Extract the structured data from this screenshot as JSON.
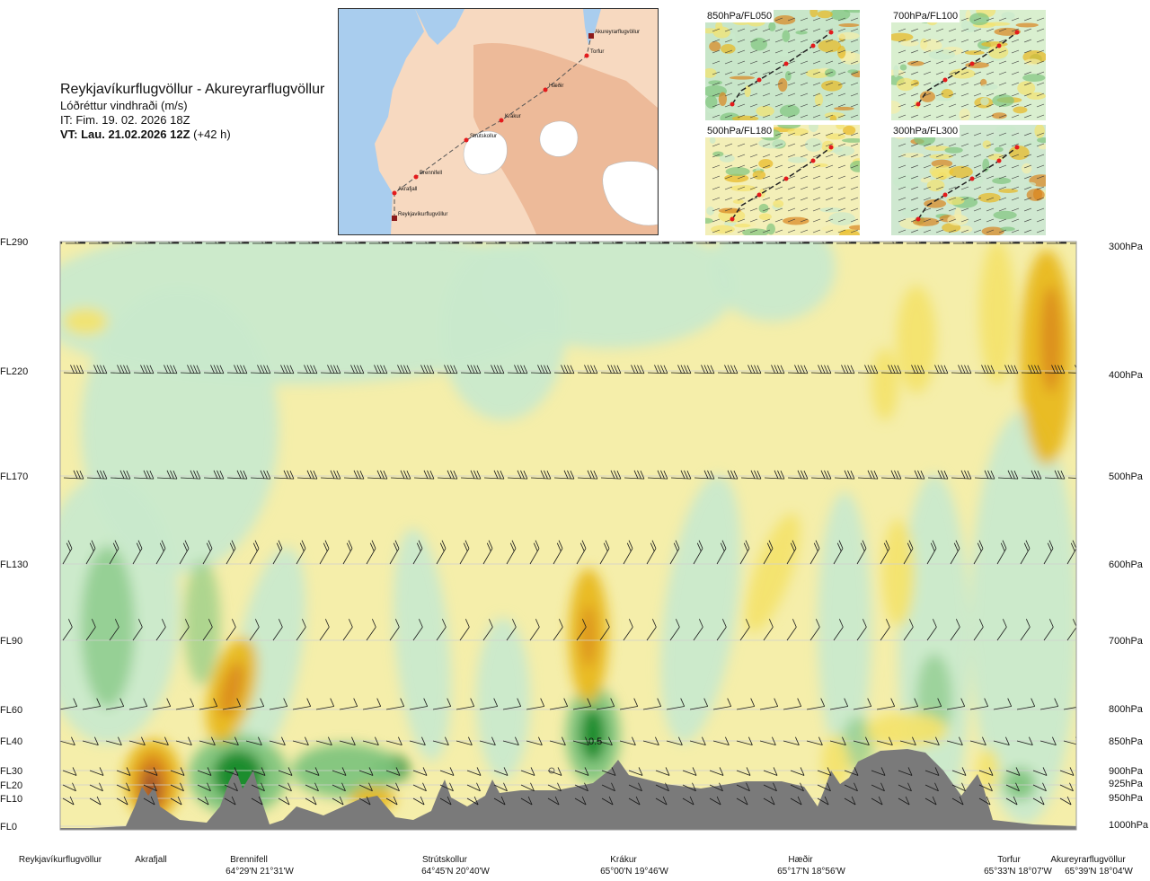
{
  "header": {
    "route_title": "Reykjavíkurflugvöllur - Akureyrarflugvöllur",
    "parameter": "Lóðréttur vindhraði (m/s)",
    "issue_time": "IT: Fim. 19. 02. 2026 18Z",
    "valid_label": "VT: Lau. 21.02.2026 12Z",
    "valid_offset": "(+42 h)"
  },
  "route_map": {
    "waypoints": [
      "Reykjavíkurflugvöllur",
      "Akrafjall",
      "Brennifell",
      "Strútskollur",
      "Krákur",
      "Hæðir",
      "Torfur",
      "Akureyrarflugvöllur"
    ],
    "colors": {
      "sea": "#a9cdee",
      "land": "#f7d9c0",
      "highland": "#eab28f",
      "ice": "#ffffff",
      "route": "#555555",
      "point": "#e31a1c"
    }
  },
  "mini_maps": [
    {
      "label": "850hPa/FL050"
    },
    {
      "label": "700hPa/FL100"
    },
    {
      "label": "500hPa/FL180"
    },
    {
      "label": "300hPa/FL300"
    }
  ],
  "chart_data": {
    "type": "heatmap",
    "xlabel": "",
    "ylabel": "",
    "legend": "none",
    "grid": true,
    "x_categories": [
      "Reykjavíkurflugvöllur",
      "Akrafjall",
      "Brennifell",
      "Strútskollur",
      "Krákur",
      "Hæðir",
      "Torfur",
      "Akureyrarflugvöllur"
    ],
    "x_coordinates": [
      "",
      "",
      "64°29'N 21°31'W",
      "64°45'N 20°40'W",
      "65°00'N 19°46'W",
      "65°17'N 18°56'W",
      "65°33'N 18°07'W",
      "65°39'N 18°04'W"
    ],
    "flight_levels": [
      "FL290",
      "FL220",
      "FL170",
      "FL130",
      "FL90",
      "FL60",
      "FL40",
      "FL30",
      "FL20",
      "FL10",
      "FL0"
    ],
    "pressure_levels": [
      "300hPa",
      "400hPa",
      "500hPa",
      "600hPa",
      "700hPa",
      "800hPa",
      "850hPa",
      "900hPa",
      "925hPa",
      "950hPa",
      "1000hPa"
    ],
    "annotations": [
      "0.5"
    ],
    "colors": {
      "strong_updraft": "#1a8a2a",
      "updraft": "#7fc47d",
      "weak_updraft": "#c9e9cc",
      "neutral": "#f5eeaa",
      "weak_downdraft": "#f3e36e",
      "downdraft": "#e8b820",
      "strong_downdraft": "#d9841e",
      "extreme_downdraft": "#a0522d",
      "terrain": "#7a7a7a",
      "barb": "#1a1a1a"
    }
  }
}
